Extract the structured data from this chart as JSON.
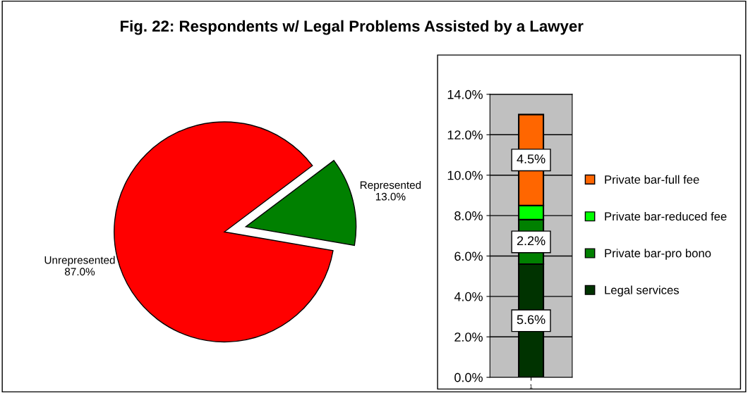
{
  "chart_data": [
    {
      "type": "pie",
      "title": "Fig. 22: Respondents w/ Legal Problems Assisted by a Lawyer",
      "categories": [
        "Unrepresented",
        "Represented"
      ],
      "values": [
        87.0,
        13.0
      ],
      "colors": [
        "#ff0000",
        "#008000"
      ],
      "value_labels": [
        "87.0%",
        "13.0%"
      ],
      "legend": false
    },
    {
      "type": "bar",
      "stacked": true,
      "categories": [
        "1"
      ],
      "series": [
        {
          "name": "Legal services",
          "color": "#003300",
          "values": [
            5.6
          ],
          "value_labels": [
            "5.6%"
          ]
        },
        {
          "name": "Private bar-pro bono",
          "color": "#008000",
          "values": [
            2.2
          ],
          "value_labels": [
            "2.2%"
          ]
        },
        {
          "name": "Private bar-reduced fee",
          "color": "#00ff00",
          "values": [
            0.7
          ],
          "value_labels": [
            null
          ]
        },
        {
          "name": "Private bar-full fee",
          "color": "#ff6600",
          "values": [
            4.5
          ],
          "value_labels": [
            "4.5%"
          ]
        }
      ],
      "ylim": [
        0,
        14
      ],
      "yticks": [
        {
          "value": 0,
          "label": "0.0%"
        },
        {
          "value": 2,
          "label": "2.0%"
        },
        {
          "value": 4,
          "label": "4.0%"
        },
        {
          "value": 6,
          "label": "6.0%"
        },
        {
          "value": 8,
          "label": "8.0%"
        },
        {
          "value": 10,
          "label": "10.0%"
        },
        {
          "value": 12,
          "label": "12.0%"
        },
        {
          "value": 14,
          "label": "14.0%"
        }
      ],
      "grid": "y",
      "legend": "right"
    }
  ]
}
